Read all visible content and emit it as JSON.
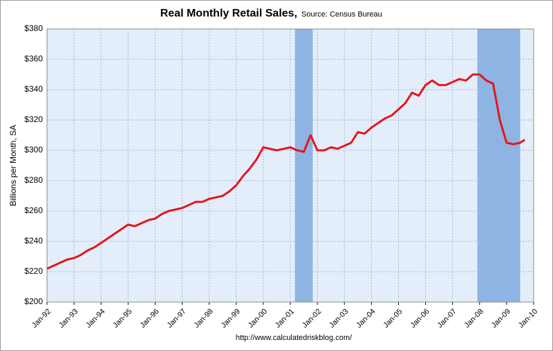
{
  "chart_data": {
    "type": "line",
    "title": "Real Monthly Retail Sales,",
    "subtitle": "Source: Census Bureau",
    "y_label": "Billions per Month, SA",
    "footer": "http://www.calculatedriskblog.com/",
    "x": [
      1992,
      1992.25,
      1992.5,
      1992.75,
      1993,
      1993.25,
      1993.5,
      1993.75,
      1994,
      1994.25,
      1994.5,
      1994.75,
      1995,
      1995.25,
      1995.5,
      1995.75,
      1996,
      1996.25,
      1996.5,
      1996.75,
      1997,
      1997.25,
      1997.5,
      1997.75,
      1998,
      1998.25,
      1998.5,
      1998.75,
      1999,
      1999.25,
      1999.5,
      1999.75,
      2000,
      2000.25,
      2000.5,
      2000.75,
      2001,
      2001.25,
      2001.5,
      2001.75,
      2002,
      2002.25,
      2002.5,
      2002.75,
      2003,
      2003.25,
      2003.5,
      2003.75,
      2004,
      2004.25,
      2004.5,
      2004.75,
      2005,
      2005.25,
      2005.5,
      2005.75,
      2006,
      2006.25,
      2006.5,
      2006.75,
      2007,
      2007.25,
      2007.5,
      2007.75,
      2008,
      2008.25,
      2008.5,
      2008.75,
      2009,
      2009.25,
      2009.5,
      2009.67
    ],
    "series": [
      {
        "name": "Real Monthly Retail Sales",
        "color": "#e8141b",
        "values": [
          222,
          224,
          226,
          228,
          229,
          231,
          234,
          236,
          239,
          242,
          245,
          248,
          251,
          250,
          252,
          254,
          255,
          258,
          260,
          261,
          262,
          264,
          266,
          266,
          268,
          269,
          270,
          273,
          277,
          283,
          288,
          294,
          302,
          301,
          300,
          301,
          302,
          300,
          299,
          310,
          300,
          300,
          302,
          301,
          303,
          305,
          312,
          311,
          315,
          318,
          321,
          323,
          327,
          331,
          338,
          336,
          343,
          346,
          343,
          343,
          345,
          347,
          346,
          350,
          350,
          346,
          344,
          320,
          305,
          304,
          305,
          307
        ]
      }
    ],
    "shaded_periods": [
      [
        2001.17,
        2001.83
      ],
      [
        2007.92,
        2009.5
      ]
    ],
    "xlim": [
      1992,
      2010
    ],
    "xticks": [
      {
        "value": 1992,
        "label": "Jan-92"
      },
      {
        "value": 1993,
        "label": "Jan-93"
      },
      {
        "value": 1994,
        "label": "Jan-94"
      },
      {
        "value": 1995,
        "label": "Jan-95"
      },
      {
        "value": 1996,
        "label": "Jan-96"
      },
      {
        "value": 1997,
        "label": "Jan-97"
      },
      {
        "value": 1998,
        "label": "Jan-98"
      },
      {
        "value": 1999,
        "label": "Jan-99"
      },
      {
        "value": 2000,
        "label": "Jan-00"
      },
      {
        "value": 2001,
        "label": "Jan-01"
      },
      {
        "value": 2002,
        "label": "Jan-02"
      },
      {
        "value": 2003,
        "label": "Jan-03"
      },
      {
        "value": 2004,
        "label": "Jan-04"
      },
      {
        "value": 2005,
        "label": "Jan-05"
      },
      {
        "value": 2006,
        "label": "Jan-06"
      },
      {
        "value": 2007,
        "label": "Jan-07"
      },
      {
        "value": 2008,
        "label": "Jan-08"
      },
      {
        "value": 2009,
        "label": "Jan-09"
      },
      {
        "value": 2010,
        "label": "Jan-10"
      }
    ],
    "ylim": [
      200,
      380
    ],
    "yticks": [
      {
        "value": 200,
        "label": "$200"
      },
      {
        "value": 220,
        "label": "$220"
      },
      {
        "value": 240,
        "label": "$240"
      },
      {
        "value": 260,
        "label": "$260"
      },
      {
        "value": 280,
        "label": "$280"
      },
      {
        "value": 300,
        "label": "$300"
      },
      {
        "value": 320,
        "label": "$320"
      },
      {
        "value": 340,
        "label": "$340"
      },
      {
        "value": 360,
        "label": "$360"
      },
      {
        "value": 380,
        "label": "$380"
      }
    ],
    "grid": true
  }
}
